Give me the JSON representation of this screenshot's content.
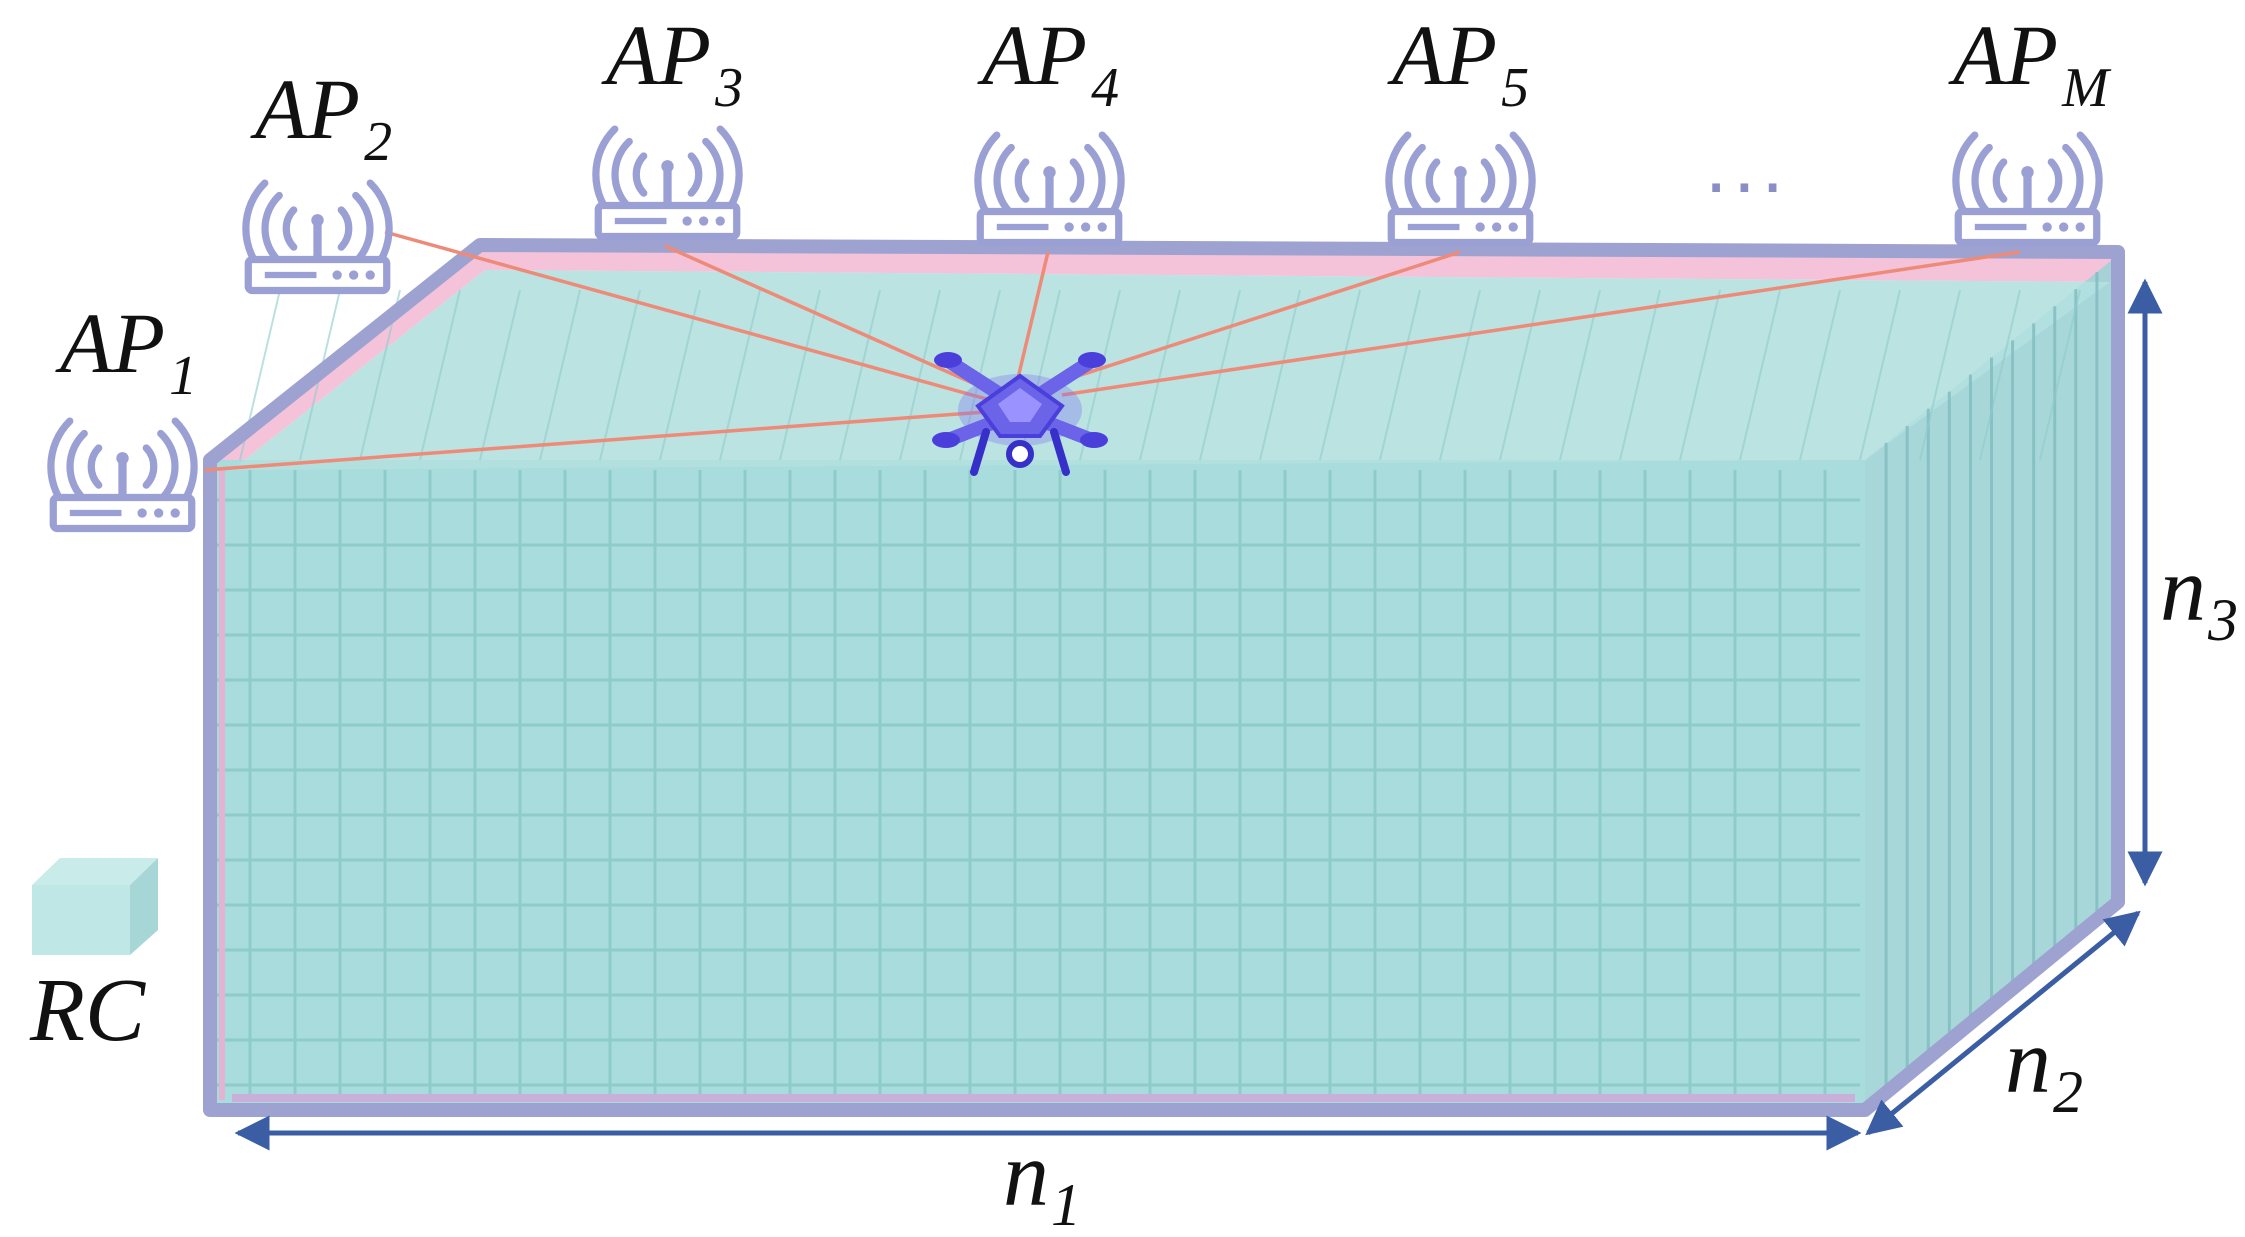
{
  "access_points": [
    {
      "name": "AP",
      "sub": "1"
    },
    {
      "name": "AP",
      "sub": "2"
    },
    {
      "name": "AP",
      "sub": "3"
    },
    {
      "name": "AP",
      "sub": "4"
    },
    {
      "name": "AP",
      "sub": "5"
    },
    {
      "name": "AP",
      "sub": "M"
    }
  ],
  "ellipsis": "...",
  "dimensions": {
    "n1": {
      "name": "n",
      "sub": "1"
    },
    "n2": {
      "name": "n",
      "sub": "2"
    },
    "n3": {
      "name": "n",
      "sub": "3"
    }
  },
  "legend": {
    "label": "RC"
  },
  "colors": {
    "box_fill": "#a9dcdc",
    "box_grid": "#7fc3c3",
    "box_frame": "#9ea2d0",
    "top_rim": "#f2b8d2",
    "link_line": "#ee8a78",
    "arrow": "#3a5da4",
    "router": "#9a9fd4",
    "drone": "#6b63e8"
  },
  "icons": {
    "access_point": "wifi-router-icon",
    "uav": "drone-icon"
  }
}
